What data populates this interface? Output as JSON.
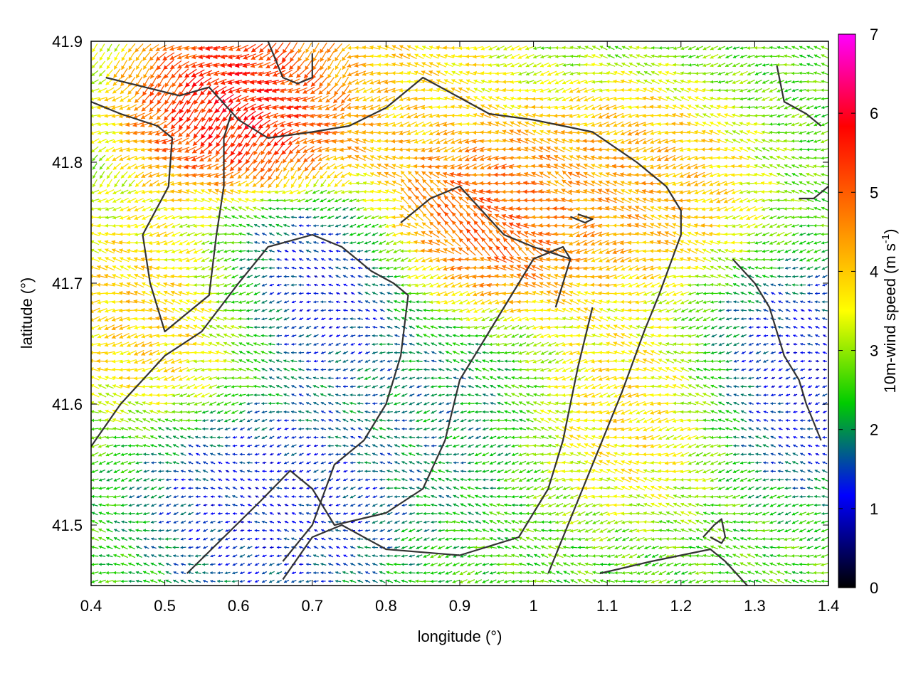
{
  "chart_data": {
    "type": "vector-field",
    "xlabel": "longitude (°)",
    "ylabel": "latitude (°)",
    "xlim": [
      0.4,
      1.4
    ],
    "ylim": [
      41.45,
      41.9
    ],
    "xticks": [
      "0.4",
      "0.5",
      "0.6",
      "0.7",
      "0.8",
      "0.9",
      "1",
      "1.1",
      "1.2",
      "1.3",
      "1.4"
    ],
    "yticks": [
      "41.5",
      "41.6",
      "41.7",
      "41.8",
      "41.9"
    ],
    "colorbar": {
      "label": "10m-wind speed (m s",
      "label_sup": "-1",
      "label_end": ")",
      "range": [
        0,
        7
      ],
      "ticks": [
        "0",
        "1",
        "2",
        "3",
        "4",
        "5",
        "6",
        "7"
      ],
      "colors": [
        "#000000",
        "#0000ff",
        "#00cc00",
        "#ffff00",
        "#ff8000",
        "#ff0000",
        "#ff00ff"
      ]
    },
    "grid": false,
    "field": {
      "lon_step": 0.01,
      "lat_step": 0.007,
      "dominant_direction": "from east to west",
      "speed_regions": [
        {
          "name": "ne-jet",
          "lon": 0.62,
          "lat": 41.85,
          "speed": 6.2
        },
        {
          "name": "central-max",
          "lon": 0.93,
          "lat": 41.75,
          "speed": 5.4
        },
        {
          "name": "northeast-high",
          "lon": 1.12,
          "lat": 41.78,
          "speed": 4.5
        },
        {
          "name": "west-band",
          "lon": 0.5,
          "lat": 41.68,
          "speed": 4.2
        },
        {
          "name": "southeast-high",
          "lon": 1.12,
          "lat": 41.6,
          "speed": 4.0
        },
        {
          "name": "north-band",
          "lon": 0.8,
          "lat": 41.88,
          "speed": 4.0
        },
        {
          "name": "west-calm",
          "lon": 0.7,
          "lat": 41.7,
          "speed": 0.8
        },
        {
          "name": "south-calm",
          "lon": 0.65,
          "lat": 41.52,
          "speed": 1.0
        },
        {
          "name": "east-calm",
          "lon": 1.37,
          "lat": 41.62,
          "speed": 0.9
        },
        {
          "name": "center-calm",
          "lon": 0.88,
          "lat": 41.6,
          "speed": 1.8
        }
      ]
    },
    "contours": [
      [
        [
          0.42,
          41.87
        ],
        [
          0.52,
          41.855
        ],
        [
          0.56,
          41.862
        ],
        [
          0.6,
          41.835
        ],
        [
          0.64,
          41.82
        ],
        [
          0.7,
          41.825
        ],
        [
          0.75,
          41.83
        ],
        [
          0.8,
          41.845
        ],
        [
          0.85,
          41.87
        ],
        [
          0.88,
          41.86
        ],
        [
          0.94,
          41.84
        ],
        [
          1.0,
          41.835
        ],
        [
          1.08,
          41.825
        ],
        [
          1.14,
          41.8
        ],
        [
          1.18,
          41.78
        ],
        [
          1.2,
          41.76
        ],
        [
          1.2,
          41.74
        ],
        [
          1.17,
          41.69
        ],
        [
          1.15,
          41.66
        ],
        [
          1.12,
          41.61
        ],
        [
          1.1,
          41.58
        ],
        [
          1.06,
          41.52
        ],
        [
          1.02,
          41.46
        ]
      ],
      [
        [
          0.4,
          41.85
        ],
        [
          0.44,
          41.84
        ],
        [
          0.49,
          41.83
        ],
        [
          0.51,
          41.82
        ],
        [
          0.505,
          41.78
        ],
        [
          0.47,
          41.74
        ],
        [
          0.48,
          41.7
        ],
        [
          0.5,
          41.66
        ],
        [
          0.54,
          41.68
        ],
        [
          0.56,
          41.69
        ],
        [
          0.57,
          41.74
        ],
        [
          0.58,
          41.78
        ],
        [
          0.58,
          41.82
        ],
        [
          0.59,
          41.84
        ]
      ],
      [
        [
          0.4,
          41.565
        ],
        [
          0.44,
          41.6
        ],
        [
          0.5,
          41.64
        ],
        [
          0.55,
          41.66
        ],
        [
          0.6,
          41.7
        ],
        [
          0.64,
          41.73
        ],
        [
          0.7,
          41.74
        ],
        [
          0.74,
          41.73
        ],
        [
          0.78,
          41.71
        ],
        [
          0.81,
          41.7
        ],
        [
          0.83,
          41.69
        ],
        [
          0.82,
          41.64
        ],
        [
          0.8,
          41.6
        ],
        [
          0.77,
          41.57
        ],
        [
          0.73,
          41.55
        ],
        [
          0.7,
          41.5
        ],
        [
          0.66,
          41.47
        ]
      ],
      [
        [
          0.53,
          41.46
        ],
        [
          0.58,
          41.49
        ],
        [
          0.63,
          41.52
        ],
        [
          0.67,
          41.545
        ],
        [
          0.7,
          41.53
        ],
        [
          0.73,
          41.5
        ],
        [
          0.8,
          41.51
        ],
        [
          0.85,
          41.53
        ],
        [
          0.88,
          41.57
        ],
        [
          0.9,
          41.62
        ],
        [
          0.93,
          41.65
        ],
        [
          0.97,
          41.69
        ],
        [
          1.0,
          41.72
        ],
        [
          1.04,
          41.73
        ],
        [
          1.05,
          41.72
        ],
        [
          1.03,
          41.68
        ]
      ],
      [
        [
          0.66,
          41.455
        ],
        [
          0.7,
          41.49
        ],
        [
          0.74,
          41.5
        ],
        [
          0.8,
          41.48
        ],
        [
          0.9,
          41.475
        ],
        [
          0.98,
          41.49
        ],
        [
          1.02,
          41.53
        ],
        [
          1.04,
          41.57
        ],
        [
          1.06,
          41.63
        ],
        [
          1.08,
          41.68
        ]
      ],
      [
        [
          0.82,
          41.75
        ],
        [
          0.86,
          41.77
        ],
        [
          0.9,
          41.78
        ],
        [
          0.93,
          41.76
        ],
        [
          0.96,
          41.74
        ],
        [
          1.0,
          41.73
        ],
        [
          1.05,
          41.72
        ]
      ],
      [
        [
          1.09,
          41.46
        ],
        [
          1.16,
          41.47
        ],
        [
          1.24,
          41.48
        ],
        [
          1.26,
          41.47
        ],
        [
          1.29,
          41.45
        ]
      ],
      [
        [
          1.27,
          41.72
        ],
        [
          1.3,
          41.7
        ],
        [
          1.32,
          41.68
        ],
        [
          1.34,
          41.64
        ],
        [
          1.36,
          41.62
        ],
        [
          1.37,
          41.6
        ],
        [
          1.39,
          41.57
        ]
      ],
      [
        [
          1.36,
          41.77
        ],
        [
          1.38,
          41.77
        ],
        [
          1.4,
          41.78
        ]
      ],
      [
        [
          1.33,
          41.88
        ],
        [
          1.34,
          41.85
        ],
        [
          1.37,
          41.84
        ],
        [
          1.39,
          41.83
        ]
      ],
      [
        [
          1.23,
          41.49
        ],
        [
          1.245,
          41.5
        ],
        [
          1.255,
          41.505
        ],
        [
          1.26,
          41.49
        ],
        [
          1.255,
          41.485
        ],
        [
          1.24,
          41.49
        ]
      ],
      [
        [
          1.05,
          41.755
        ],
        [
          1.07,
          41.75
        ],
        [
          1.08,
          41.753
        ],
        [
          1.06,
          41.757
        ]
      ],
      [
        [
          0.64,
          41.9
        ],
        [
          0.66,
          41.87
        ],
        [
          0.68,
          41.865
        ],
        [
          0.7,
          41.87
        ],
        [
          0.7,
          41.89
        ]
      ]
    ]
  }
}
